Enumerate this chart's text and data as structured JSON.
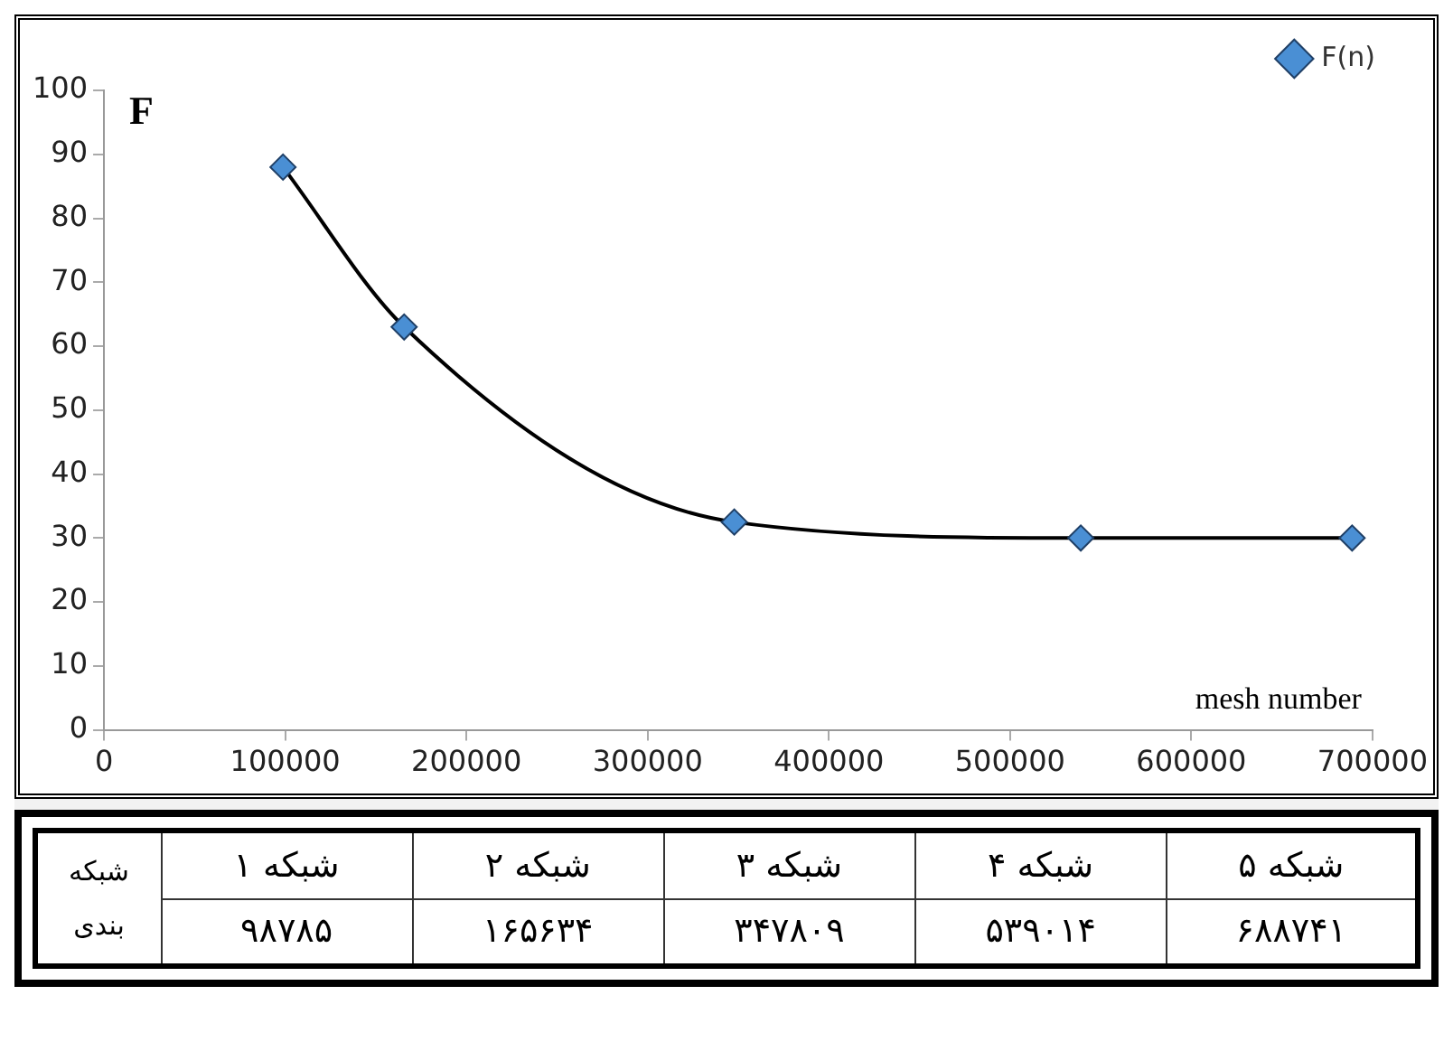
{
  "chart_data": {
    "type": "line",
    "xlabel": "mesh number",
    "ylabel": "F",
    "x": [
      98785,
      165634,
      347809,
      539014,
      688741
    ],
    "series": [
      {
        "name": "F(n)",
        "color": "#000000",
        "colors": [
          "#4a8fd4",
          "#4a8fd4",
          "#4a8fd4",
          "#4a8fd4",
          "#4a8fd4"
        ],
        "values": [
          88,
          63,
          32.5,
          30,
          30
        ]
      }
    ],
    "xlim": [
      0,
      700000
    ],
    "xticks": [
      0,
      100000,
      200000,
      300000,
      400000,
      500000,
      600000,
      700000
    ],
    "ylim": [
      0,
      100
    ],
    "yticks": [
      0,
      10,
      20,
      30,
      40,
      50,
      60,
      70,
      80,
      90,
      100
    ],
    "grid": false,
    "legend": "top right",
    "marker": "diamond",
    "line_style": "solid",
    "annotations": [
      "شبکه بندی",
      "شبکه ۱",
      "شبکه ۲",
      "شبکه ۳",
      "شبکه ۴",
      "شبکه ۵",
      "۹۸۷۸۵",
      "۱۶۵۶۳۴",
      "۳۴۷۸۰۹",
      "۵۳۹۰۱۴",
      "۶۸۸۷۴۱"
    ]
  }
}
